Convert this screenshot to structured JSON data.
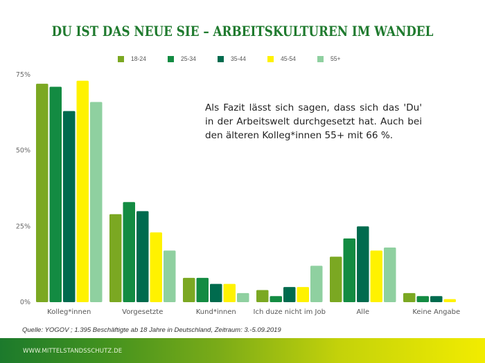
{
  "page": {
    "title": "DU IST DAS NEUE SIE – ARBEITSKULTUREN IM WANDEL",
    "annotation": "Als Fazit lässt sich sagen, dass sich das 'Du' in der Arbeitswelt durchgesetzt hat. Auch bei den älteren Kolleg*innen 55+ mit 66 %.",
    "source": "Quelle: YOGOV ; 1.395 Beschäftigte ab 18 Jahre in Deutschland, Zeitraum: 3.-5.09.2019",
    "footer_url": "WWW.MITTELSTANDSSCHUTZ.DE"
  },
  "chart_data": {
    "type": "bar",
    "title": "DU IST DAS NEUE SIE – ARBEITSKULTUREN IM WANDEL",
    "xlabel": "",
    "ylabel": "",
    "ylim": [
      0,
      75
    ],
    "yticks": [
      0,
      25,
      50,
      75
    ],
    "ytick_labels": [
      "0%",
      "25%",
      "50%",
      "75%"
    ],
    "grid": false,
    "legend_position": "top-center",
    "categories": [
      "Kolleg*innen",
      "Vorgesetzte",
      "Kund*innen",
      "Ich duze nicht im Job",
      "Alle",
      "Keine Angabe"
    ],
    "series": [
      {
        "name": "18-24",
        "color": "#7ba822",
        "values": [
          72,
          29,
          8,
          4,
          15,
          3
        ]
      },
      {
        "name": "25-34",
        "color": "#138b42",
        "values": [
          71,
          33,
          8,
          2,
          21,
          2
        ]
      },
      {
        "name": "35-44",
        "color": "#006b4e",
        "values": [
          63,
          30,
          6,
          5,
          25,
          2
        ]
      },
      {
        "name": "45-54",
        "color": "#fff200",
        "values": [
          73,
          23,
          6,
          5,
          17,
          1
        ]
      },
      {
        "name": "55+",
        "color": "#8fd0a0",
        "values": [
          66,
          17,
          3,
          12,
          18,
          0
        ]
      }
    ]
  }
}
